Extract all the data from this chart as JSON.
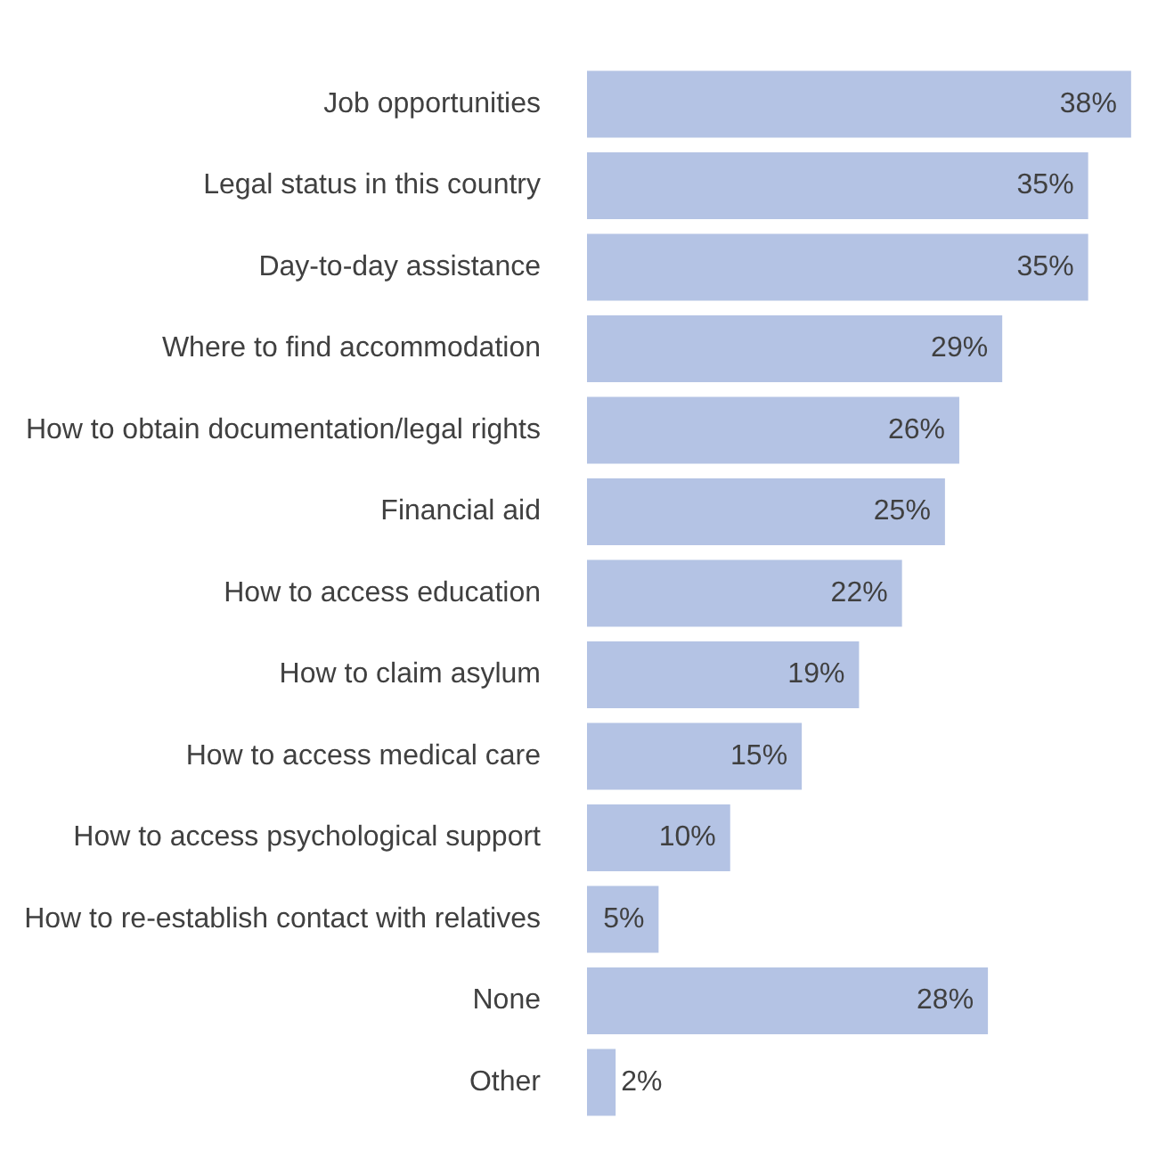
{
  "chart_data": {
    "type": "bar",
    "orientation": "horizontal",
    "categories": [
      "Job opportunities",
      "Legal status in this country",
      "Day-to-day assistance",
      "Where to find accommodation",
      "How to obtain documentation/legal rights",
      "Financial aid",
      "How to access education",
      "How to claim asylum",
      "How to access medical care",
      "How to access psychological support",
      "How to re-establish contact with relatives",
      "None",
      "Other"
    ],
    "values": [
      38,
      35,
      35,
      29,
      26,
      25,
      22,
      19,
      15,
      10,
      5,
      28,
      2
    ],
    "value_labels": [
      "38%",
      "35%",
      "35%",
      "29%",
      "26%",
      "25%",
      "22%",
      "19%",
      "15%",
      "10%",
      "5%",
      "28%",
      "2%"
    ],
    "color": "#b4c3e4",
    "legend": false,
    "tick_labels": "y"
  }
}
